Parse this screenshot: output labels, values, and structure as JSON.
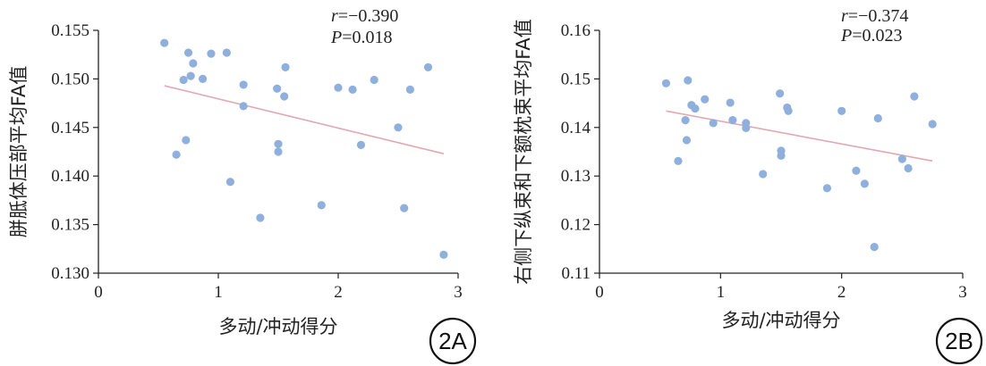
{
  "chart_data": [
    {
      "type": "scatter",
      "panel_label": "2A",
      "xlabel": "多动/冲动得分",
      "ylabel": "胼胝体压部平均FA值",
      "xlim": [
        0,
        3
      ],
      "ylim": [
        0.13,
        0.155
      ],
      "x_ticks": [
        "0",
        "1",
        "2",
        "3"
      ],
      "y_ticks": [
        "0.130",
        "0.135",
        "0.140",
        "0.145",
        "0.150",
        "0.155"
      ],
      "x_tick_values": [
        0,
        1,
        2,
        3
      ],
      "y_tick_values": [
        0.13,
        0.135,
        0.14,
        0.145,
        0.15,
        0.155
      ],
      "stat_r_label": "r",
      "stat_r_value": "=−0.390",
      "stat_p_label": "P",
      "stat_p_value": "=0.018",
      "point_color": "#8fb0dc",
      "trend_color": "#e3a7b1",
      "trendline": {
        "x": [
          0.55,
          2.88
        ],
        "y": [
          0.1493,
          0.1423
        ]
      },
      "points": [
        {
          "x": 0.55,
          "y": 0.1537
        },
        {
          "x": 0.75,
          "y": 0.1527
        },
        {
          "x": 0.94,
          "y": 0.1526
        },
        {
          "x": 1.07,
          "y": 0.1527
        },
        {
          "x": 0.79,
          "y": 0.1516
        },
        {
          "x": 1.56,
          "y": 0.1512
        },
        {
          "x": 2.75,
          "y": 0.1512
        },
        {
          "x": 0.77,
          "y": 0.1503
        },
        {
          "x": 0.71,
          "y": 0.1499
        },
        {
          "x": 0.87,
          "y": 0.15
        },
        {
          "x": 2.3,
          "y": 0.1499
        },
        {
          "x": 1.21,
          "y": 0.1494
        },
        {
          "x": 1.49,
          "y": 0.149
        },
        {
          "x": 2.0,
          "y": 0.1491
        },
        {
          "x": 2.12,
          "y": 0.1489
        },
        {
          "x": 2.6,
          "y": 0.1489
        },
        {
          "x": 1.55,
          "y": 0.1482
        },
        {
          "x": 1.21,
          "y": 0.1472
        },
        {
          "x": 2.5,
          "y": 0.145
        },
        {
          "x": 0.73,
          "y": 0.1437
        },
        {
          "x": 1.5,
          "y": 0.1433
        },
        {
          "x": 2.19,
          "y": 0.1432
        },
        {
          "x": 1.5,
          "y": 0.1425
        },
        {
          "x": 0.65,
          "y": 0.1422
        },
        {
          "x": 1.1,
          "y": 0.1394
        },
        {
          "x": 1.86,
          "y": 0.137
        },
        {
          "x": 2.55,
          "y": 0.1367
        },
        {
          "x": 1.35,
          "y": 0.1357
        },
        {
          "x": 2.88,
          "y": 0.1319
        }
      ]
    },
    {
      "type": "scatter",
      "panel_label": "2B",
      "xlabel": "多动/冲动得分",
      "ylabel": "右侧下纵束和下额枕束平均FA值",
      "xlim": [
        0,
        3
      ],
      "ylim": [
        0.11,
        0.16
      ],
      "x_ticks": [
        "0",
        "1",
        "2",
        "3"
      ],
      "y_ticks": [
        "0.11",
        "0.12",
        "0.13",
        "0.14",
        "0.15",
        "0.16"
      ],
      "x_tick_values": [
        0,
        1,
        2,
        3
      ],
      "y_tick_values": [
        0.11,
        0.12,
        0.13,
        0.14,
        0.15,
        0.16
      ],
      "stat_r_label": "r",
      "stat_r_value": "=−0.374",
      "stat_p_label": "P",
      "stat_p_value": "=0.023",
      "point_color": "#8fb0dc",
      "trend_color": "#e3a7b1",
      "trendline": {
        "x": [
          0.55,
          2.75
        ],
        "y": [
          0.1434,
          0.1331
        ]
      },
      "points": [
        {
          "x": 0.55,
          "y": 0.1491
        },
        {
          "x": 0.73,
          "y": 0.1497
        },
        {
          "x": 0.76,
          "y": 0.1446
        },
        {
          "x": 0.79,
          "y": 0.1439
        },
        {
          "x": 0.87,
          "y": 0.1458
        },
        {
          "x": 1.49,
          "y": 0.147
        },
        {
          "x": 1.08,
          "y": 0.1451
        },
        {
          "x": 2.6,
          "y": 0.1464
        },
        {
          "x": 0.71,
          "y": 0.1415
        },
        {
          "x": 0.94,
          "y": 0.1409
        },
        {
          "x": 1.1,
          "y": 0.1415
        },
        {
          "x": 1.21,
          "y": 0.1409
        },
        {
          "x": 1.21,
          "y": 0.1399
        },
        {
          "x": 1.55,
          "y": 0.1441
        },
        {
          "x": 1.56,
          "y": 0.1434
        },
        {
          "x": 2.0,
          "y": 0.1434
        },
        {
          "x": 2.3,
          "y": 0.1419
        },
        {
          "x": 2.75,
          "y": 0.1407
        },
        {
          "x": 0.72,
          "y": 0.1374
        },
        {
          "x": 1.5,
          "y": 0.1352
        },
        {
          "x": 1.5,
          "y": 0.1342
        },
        {
          "x": 0.65,
          "y": 0.1331
        },
        {
          "x": 2.5,
          "y": 0.1335
        },
        {
          "x": 2.55,
          "y": 0.1316
        },
        {
          "x": 2.12,
          "y": 0.1311
        },
        {
          "x": 1.35,
          "y": 0.1304
        },
        {
          "x": 2.19,
          "y": 0.1284
        },
        {
          "x": 1.88,
          "y": 0.1275
        },
        {
          "x": 2.27,
          "y": 0.1154
        }
      ]
    }
  ]
}
